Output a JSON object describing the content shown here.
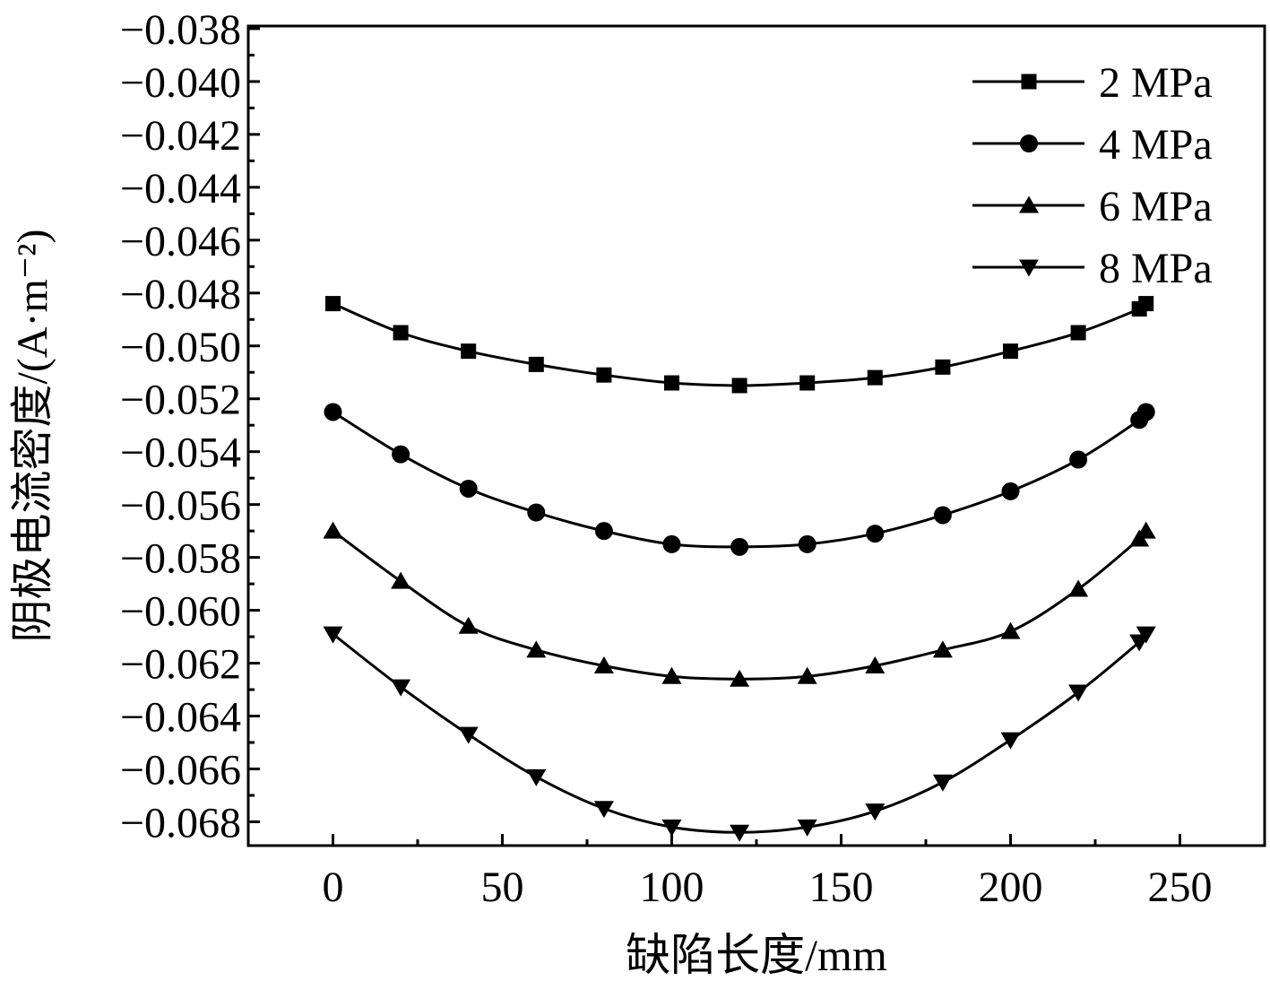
{
  "chart_data": {
    "type": "line",
    "xlabel": "缺陷长度/mm",
    "ylabel": "阴极电流密度/(A·m⁻²)",
    "xlim": [
      -25,
      275
    ],
    "ylim": [
      -0.0689,
      -0.0379
    ],
    "x_ticks": [
      0,
      50,
      100,
      150,
      200,
      250
    ],
    "x_tick_labels": [
      "0",
      "50",
      "100",
      "150",
      "200",
      "250"
    ],
    "y_ticks": [
      -0.038,
      -0.04,
      -0.042,
      -0.044,
      -0.046,
      -0.048,
      -0.05,
      -0.052,
      -0.054,
      -0.056,
      -0.058,
      -0.06,
      -0.062,
      -0.064,
      -0.066,
      -0.068
    ],
    "y_tick_labels": [
      "−0.038",
      "−0.040",
      "−0.042",
      "−0.044",
      "−0.046",
      "−0.048",
      "−0.050",
      "−0.052",
      "−0.054",
      "−0.056",
      "−0.058",
      "−0.060",
      "−0.062",
      "−0.064",
      "−0.066",
      "−0.068"
    ],
    "grid": false,
    "legend_position": "top-right",
    "x": [
      0,
      20,
      40,
      60,
      80,
      100,
      120,
      140,
      160,
      180,
      200,
      220,
      238,
      240
    ],
    "series": [
      {
        "name": "2 MPa",
        "marker": "square",
        "values": [
          -0.0484,
          -0.0495,
          -0.0502,
          -0.0507,
          -0.0511,
          -0.0514,
          -0.0515,
          -0.0514,
          -0.0512,
          -0.0508,
          -0.0502,
          -0.0495,
          -0.0486,
          -0.0484
        ]
      },
      {
        "name": "4 MPa",
        "marker": "circle",
        "values": [
          -0.0525,
          -0.0541,
          -0.0554,
          -0.0563,
          -0.057,
          -0.0575,
          -0.0576,
          -0.0575,
          -0.0571,
          -0.0564,
          -0.0555,
          -0.0543,
          -0.0528,
          -0.0525
        ]
      },
      {
        "name": "6 MPa",
        "marker": "triangle-up",
        "values": [
          -0.057,
          -0.0589,
          -0.0606,
          -0.0615,
          -0.0621,
          -0.0625,
          -0.0626,
          -0.0625,
          -0.0621,
          -0.0615,
          -0.0608,
          -0.0592,
          -0.0573,
          -0.057
        ]
      },
      {
        "name": "8 MPa",
        "marker": "triangle-down",
        "values": [
          -0.0609,
          -0.0629,
          -0.0647,
          -0.0663,
          -0.0675,
          -0.0682,
          -0.0684,
          -0.0682,
          -0.0676,
          -0.0665,
          -0.0649,
          -0.0631,
          -0.0612,
          -0.0609
        ]
      }
    ]
  }
}
